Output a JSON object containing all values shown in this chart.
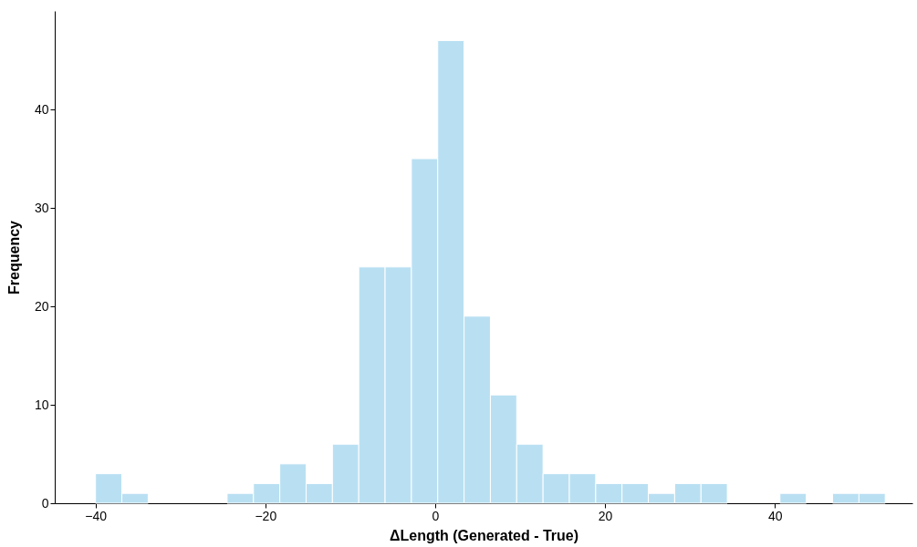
{
  "chart_data": {
    "type": "histogram",
    "xlabel": "ΔLength (Generated - True)",
    "ylabel": "Frequency",
    "bins": [
      -40,
      -36.9,
      -33.8,
      -30.7,
      -27.6,
      -24.5,
      -21.4,
      -18.3,
      -15.2,
      -12.1,
      -9,
      -5.9,
      -2.8,
      0.3,
      3.4,
      6.5,
      9.6,
      12.7,
      15.8,
      18.9,
      22,
      25.1,
      28.2,
      31.3,
      34.4,
      37.5,
      40.6,
      43.7,
      46.8,
      49.9,
      53
    ],
    "values": [
      3,
      1,
      0,
      0,
      0,
      1,
      2,
      4,
      2,
      6,
      24,
      24,
      35,
      47,
      19,
      11,
      6,
      3,
      3,
      2,
      2,
      1,
      2,
      2,
      0,
      0,
      1,
      0,
      1,
      1
    ],
    "color": "#b9e0f2",
    "xlim": [
      -44.8,
      56.2
    ],
    "ylim": [
      0,
      50
    ],
    "xticks": [
      -40,
      -20,
      0,
      20,
      40
    ],
    "yticks": [
      0,
      10,
      20,
      30,
      40
    ],
    "grid": false
  }
}
